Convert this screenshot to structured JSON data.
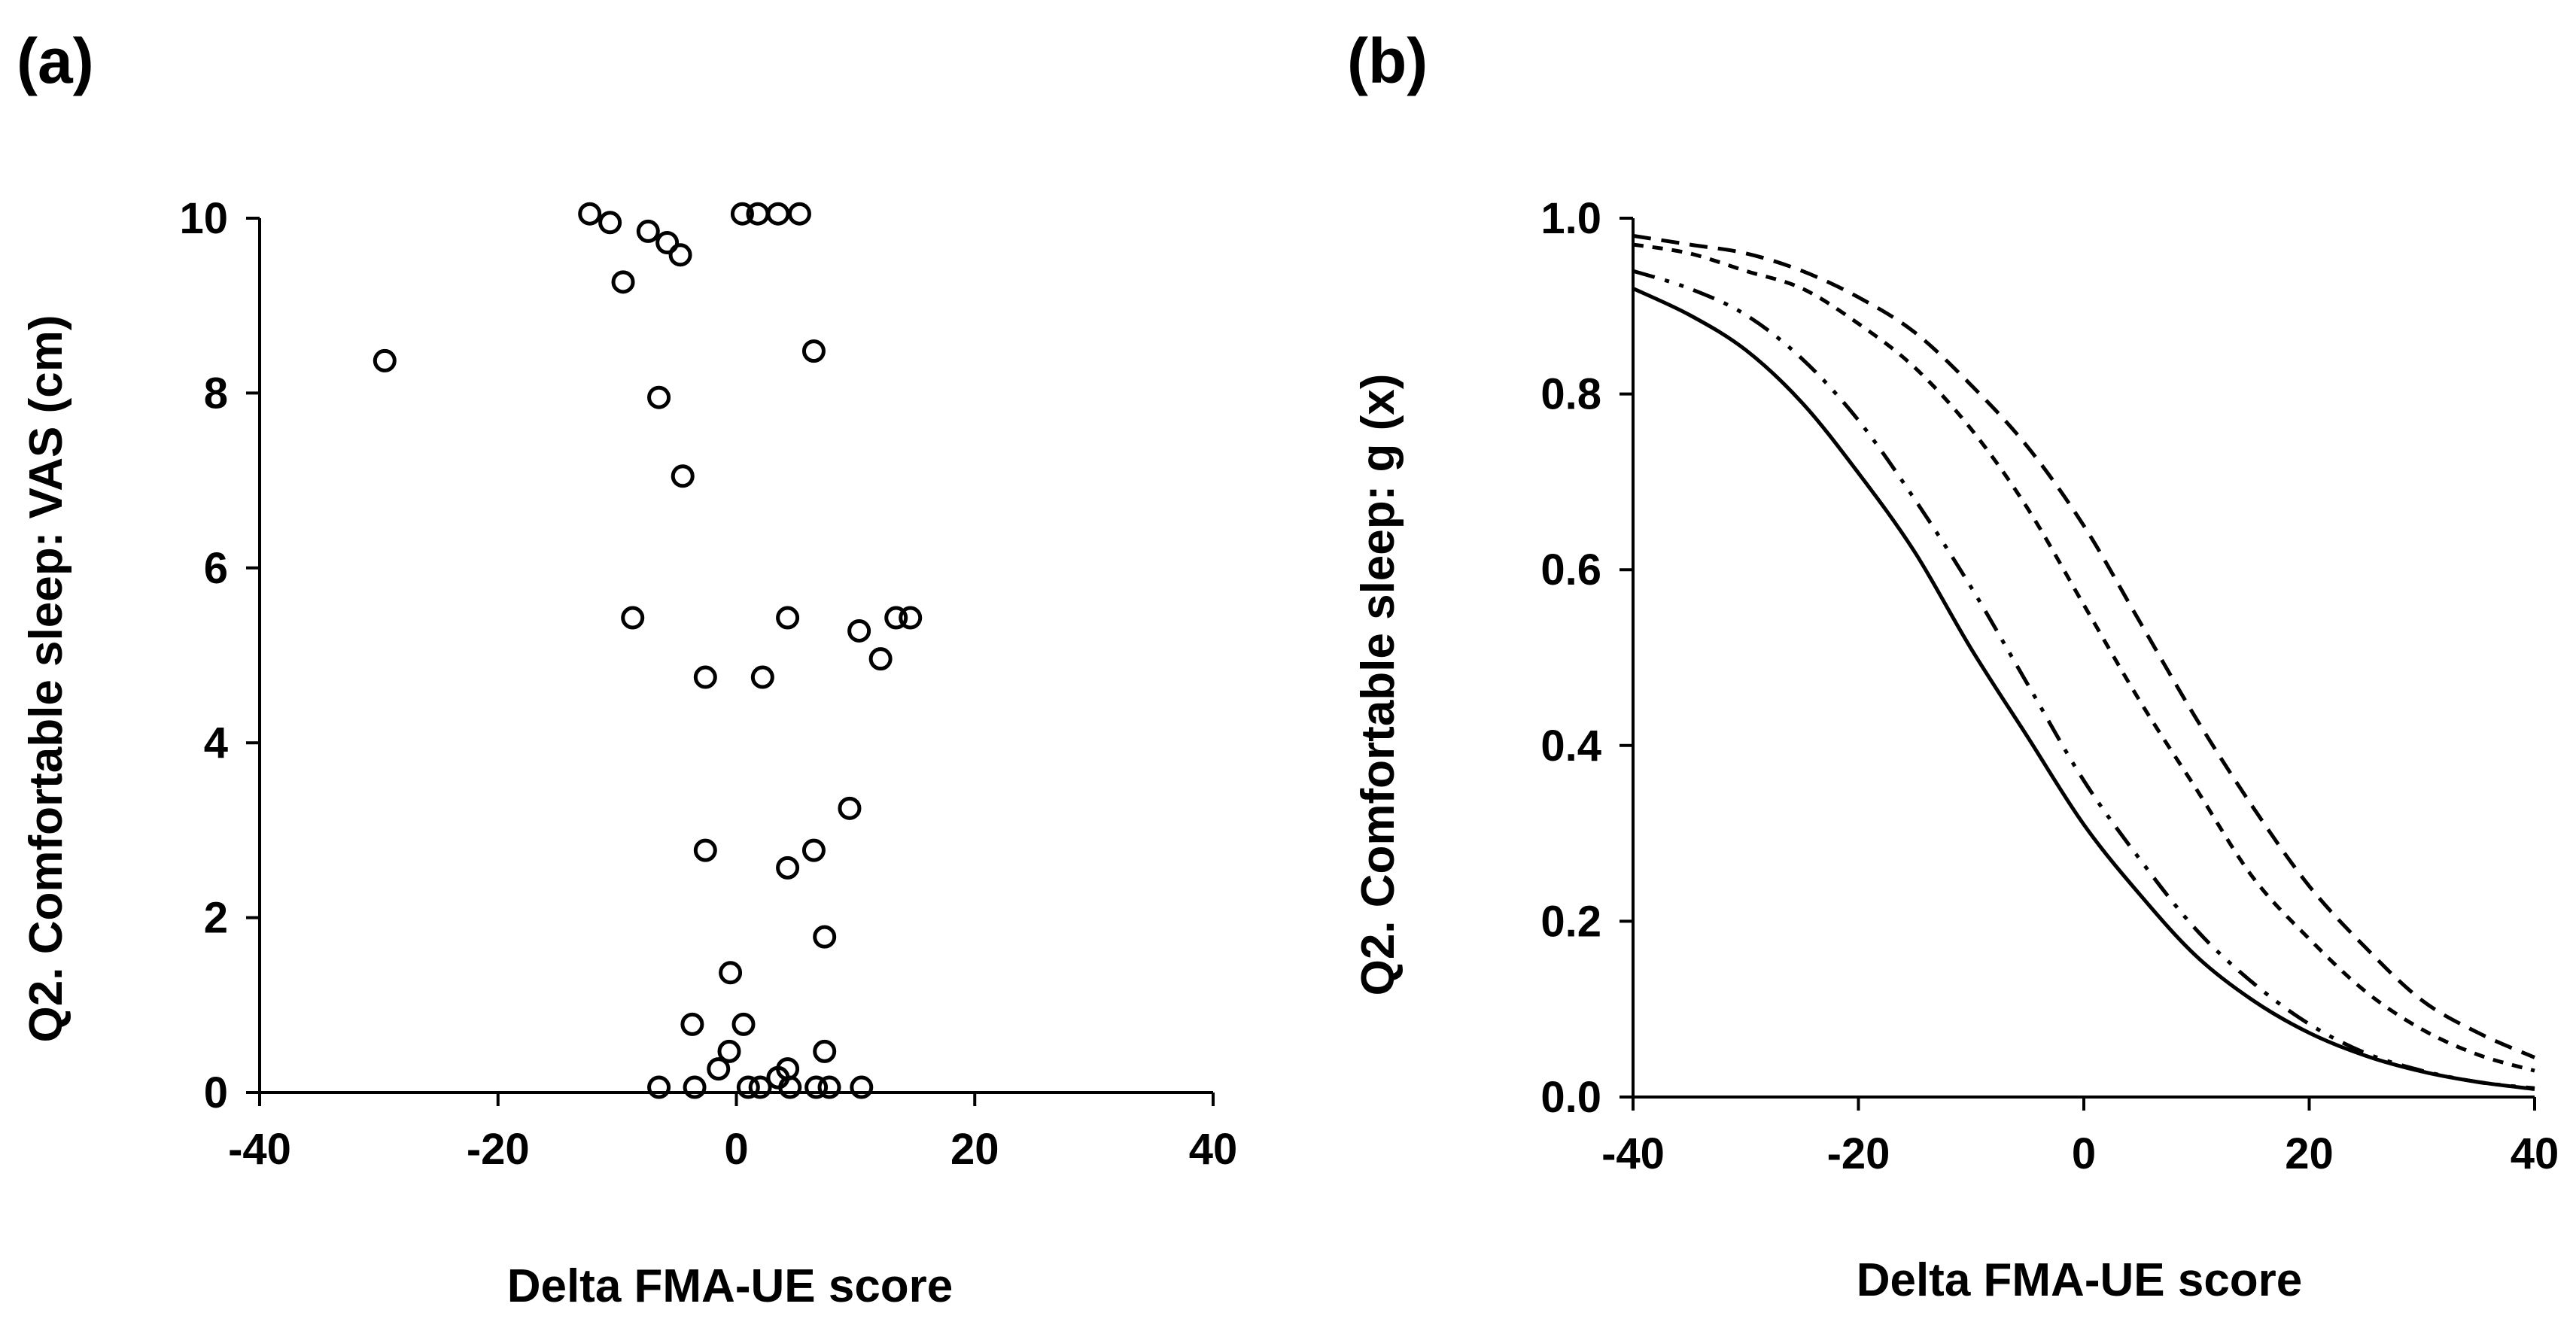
{
  "chart_data": [
    {
      "panel_label": "(a)",
      "type": "scatter",
      "xlabel": "Delta FMA-UE score",
      "ylabel": "Q2. Comfortable sleep: VAS (cm)",
      "xlim": [
        -40,
        40
      ],
      "ylim": [
        0,
        10
      ],
      "xticks": [
        -40,
        -20,
        0,
        20,
        40
      ],
      "yticks": [
        0,
        2,
        4,
        6,
        8,
        10
      ],
      "xtick_labels": [
        "-40",
        "-20",
        "0",
        "20",
        "40"
      ],
      "ytick_labels": [
        "0",
        "2",
        "4",
        "6",
        "8",
        "10"
      ],
      "grid": false,
      "legend": "none",
      "marker": "open-circle",
      "points": [
        {
          "x": -12.3,
          "y": 10.05
        },
        {
          "x": -10.6,
          "y": 9.95
        },
        {
          "x": 0.5,
          "y": 10.05
        },
        {
          "x": 1.8,
          "y": 10.05
        },
        {
          "x": 3.5,
          "y": 10.05
        },
        {
          "x": 5.3,
          "y": 10.05
        },
        {
          "x": -7.4,
          "y": 9.85
        },
        {
          "x": -5.8,
          "y": 9.72
        },
        {
          "x": -4.7,
          "y": 9.58
        },
        {
          "x": -9.5,
          "y": 9.27
        },
        {
          "x": -29.5,
          "y": 8.37
        },
        {
          "x": 6.5,
          "y": 8.48
        },
        {
          "x": -6.5,
          "y": 7.95
        },
        {
          "x": -4.5,
          "y": 7.05
        },
        {
          "x": -8.7,
          "y": 5.43
        },
        {
          "x": 4.3,
          "y": 5.43
        },
        {
          "x": 10.3,
          "y": 5.28
        },
        {
          "x": 13.4,
          "y": 5.43
        },
        {
          "x": 14.6,
          "y": 5.43
        },
        {
          "x": 12.1,
          "y": 4.96
        },
        {
          "x": -2.6,
          "y": 4.75
        },
        {
          "x": 2.2,
          "y": 4.75
        },
        {
          "x": 9.5,
          "y": 3.25
        },
        {
          "x": -2.6,
          "y": 2.77
        },
        {
          "x": 6.5,
          "y": 2.77
        },
        {
          "x": 4.3,
          "y": 2.57
        },
        {
          "x": 7.4,
          "y": 1.78
        },
        {
          "x": -0.5,
          "y": 1.37
        },
        {
          "x": -3.7,
          "y": 0.78
        },
        {
          "x": 0.6,
          "y": 0.78
        },
        {
          "x": -0.6,
          "y": 0.47
        },
        {
          "x": 7.4,
          "y": 0.47
        },
        {
          "x": -1.5,
          "y": 0.27
        },
        {
          "x": 4.3,
          "y": 0.27
        },
        {
          "x": 3.5,
          "y": 0.17
        },
        {
          "x": -6.5,
          "y": 0.06
        },
        {
          "x": -3.5,
          "y": 0.06
        },
        {
          "x": 1.0,
          "y": 0.06
        },
        {
          "x": 2.0,
          "y": 0.06
        },
        {
          "x": 4.5,
          "y": 0.06
        },
        {
          "x": 6.7,
          "y": 0.06
        },
        {
          "x": 7.8,
          "y": 0.06
        },
        {
          "x": 10.5,
          "y": 0.06
        }
      ]
    },
    {
      "panel_label": "(b)",
      "type": "line",
      "xlabel": "Delta FMA-UE score",
      "ylabel": "Q2. Comfortable sleep: g (x)",
      "xlim": [
        -40,
        40
      ],
      "ylim": [
        0,
        1
      ],
      "xticks": [
        -40,
        -20,
        0,
        20,
        40
      ],
      "yticks": [
        0,
        0.2,
        0.4,
        0.6,
        0.8,
        1.0
      ],
      "xtick_labels": [
        "-40",
        "-20",
        "0",
        "20",
        "40"
      ],
      "ytick_labels": [
        "0.0",
        "0.2",
        "0.4",
        "0.6",
        "0.8",
        "1.0"
      ],
      "grid": false,
      "legend": "none",
      "x": [
        -40,
        -35,
        -30,
        -25,
        -20,
        -15,
        -10,
        -5,
        0,
        5,
        10,
        15,
        20,
        25,
        30,
        35,
        40
      ],
      "series": [
        {
          "name": "solid",
          "dash": "solid",
          "values": [
            0.92,
            0.89,
            0.85,
            0.79,
            0.71,
            0.62,
            0.51,
            0.41,
            0.31,
            0.23,
            0.16,
            0.11,
            0.073,
            0.047,
            0.029,
            0.017,
            0.009
          ]
        },
        {
          "name": "dash-dot-dot",
          "dash": "dash-dot-dot",
          "values": [
            0.94,
            0.92,
            0.89,
            0.84,
            0.77,
            0.68,
            0.58,
            0.47,
            0.36,
            0.27,
            0.19,
            0.13,
            0.083,
            0.05,
            0.03,
            0.017,
            0.01
          ]
        },
        {
          "name": "short-dash",
          "dash": "short-dash",
          "values": [
            0.97,
            0.96,
            0.94,
            0.92,
            0.88,
            0.83,
            0.76,
            0.67,
            0.56,
            0.45,
            0.35,
            0.25,
            0.18,
            0.12,
            0.077,
            0.048,
            0.03
          ]
        },
        {
          "name": "dash",
          "dash": "dash",
          "values": [
            0.98,
            0.97,
            0.96,
            0.94,
            0.91,
            0.87,
            0.81,
            0.74,
            0.65,
            0.54,
            0.43,
            0.33,
            0.24,
            0.17,
            0.11,
            0.073,
            0.045
          ]
        }
      ]
    }
  ]
}
